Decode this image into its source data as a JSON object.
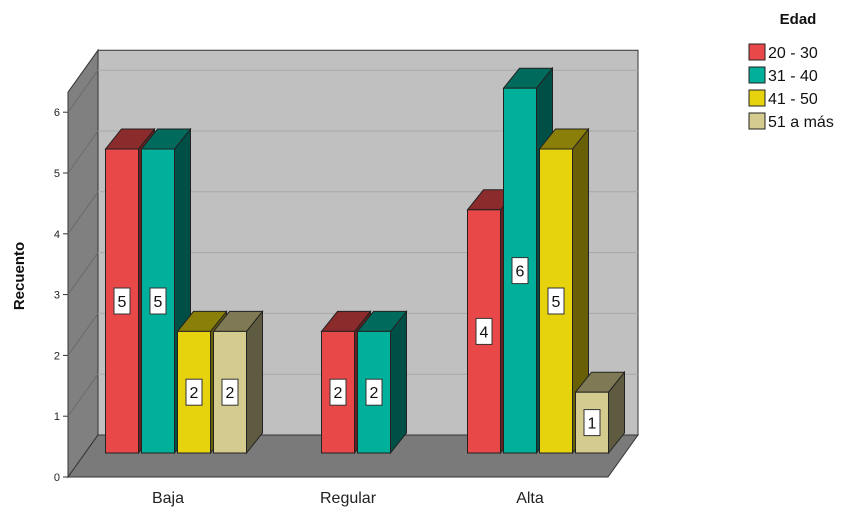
{
  "chart_data": {
    "type": "bar",
    "style": "3d-clustered",
    "categories": [
      "Baja",
      "Regular",
      "Alta"
    ],
    "ylabel": "Recuento",
    "ylim": [
      0,
      6
    ],
    "yticks": [
      "0",
      "1",
      "2",
      "3",
      "4",
      "5",
      "6"
    ],
    "grid": true,
    "legend": {
      "title": "Edad",
      "placement": "top-right"
    },
    "series": [
      {
        "name": "20 - 30",
        "values": [
          5,
          2,
          4
        ],
        "color": "#e84848"
      },
      {
        "name": "31 - 40",
        "values": [
          5,
          2,
          6
        ],
        "color": "#00b09b"
      },
      {
        "name": "41 - 50",
        "values": [
          2,
          null,
          5
        ],
        "color": "#e6d30e"
      },
      {
        "name": "51 a más",
        "values": [
          2,
          null,
          1
        ],
        "color": "#d4cb8e"
      }
    ],
    "data_labels": true
  }
}
